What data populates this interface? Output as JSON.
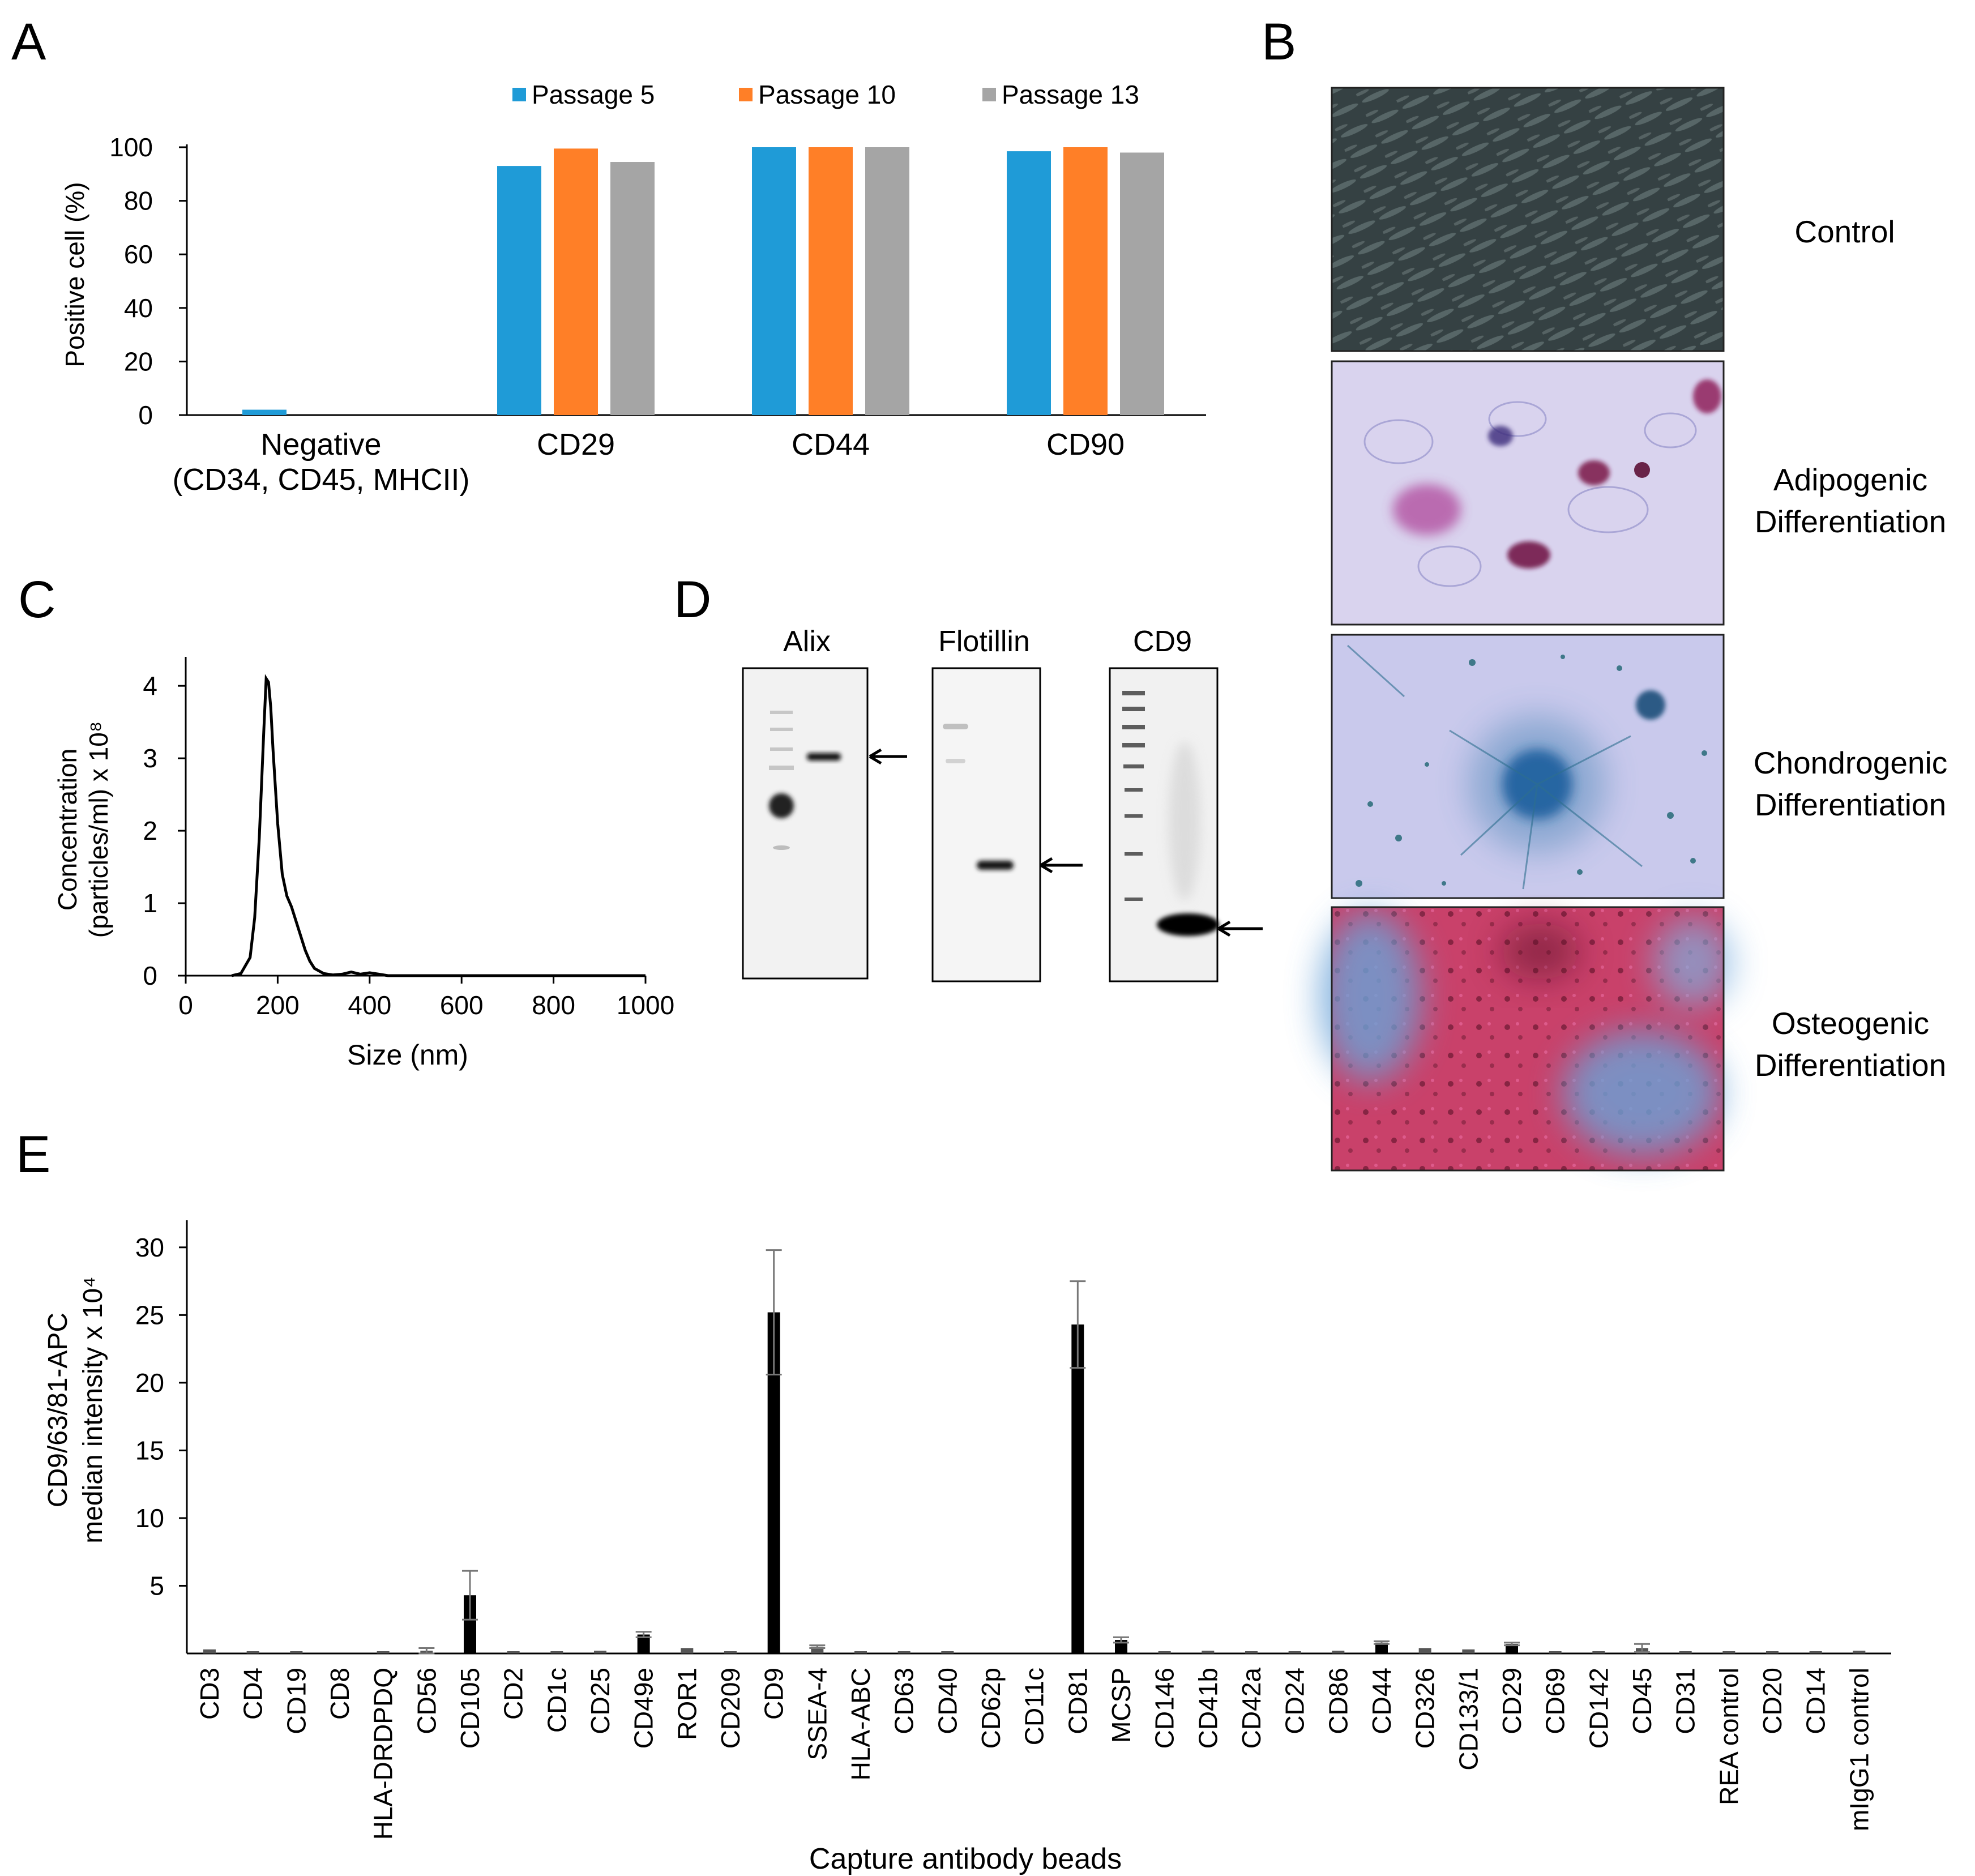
{
  "panel_letters": {
    "a": "A",
    "b": "B",
    "c": "C",
    "d": "D",
    "e": "E"
  },
  "colors": {
    "passage5": "#1f9bd7",
    "passage10": "#ff7f27",
    "passage13": "#a5a5a5",
    "bars_e": "#000000",
    "axis": "#000000"
  },
  "chart_data": [
    {
      "panel": "A",
      "type": "bar",
      "title": "",
      "xlabel": "",
      "ylabel": "Positive cell (%)",
      "ylim": [
        0,
        100
      ],
      "yticks": [
        "0",
        "20",
        "40",
        "60",
        "80",
        "100"
      ],
      "categories": [
        "Negative\n(CD34, CD45, MHCII)",
        "CD29",
        "CD44",
        "CD90"
      ],
      "category_lines": [
        [
          "Negative",
          "(CD34, CD45, MHCII)"
        ],
        [
          "CD29"
        ],
        [
          "CD44"
        ],
        [
          "CD90"
        ]
      ],
      "series": [
        {
          "name": "Passage 5",
          "color": "#1f9bd7",
          "values": [
            2,
            93,
            100,
            98.5
          ]
        },
        {
          "name": "Passage 10",
          "color": "#ff7f27",
          "values": [
            0,
            99.5,
            100,
            100
          ]
        },
        {
          "name": "Passage 13",
          "color": "#a5a5a5",
          "values": [
            0,
            94.5,
            100,
            98
          ]
        }
      ],
      "legend_position": "top"
    },
    {
      "panel": "C",
      "type": "line",
      "title": "",
      "xlabel": "Size (nm)",
      "ylabel_lines": [
        "Concentration",
        "(particles/ml) x 10⁸"
      ],
      "xlim": [
        0,
        1000
      ],
      "ylim": [
        0,
        4.4
      ],
      "xticks": [
        "0",
        "200",
        "400",
        "600",
        "800",
        "1000"
      ],
      "yticks": [
        "0",
        "1",
        "2",
        "3",
        "4"
      ],
      "x": [
        100,
        120,
        140,
        150,
        160,
        170,
        175,
        180,
        185,
        190,
        200,
        210,
        220,
        230,
        240,
        250,
        260,
        270,
        280,
        300,
        320,
        340,
        360,
        380,
        400,
        420,
        440,
        500,
        600,
        1000
      ],
      "y": [
        0,
        0.03,
        0.25,
        0.8,
        1.9,
        3.4,
        4.1,
        4.05,
        3.7,
        3.1,
        2.1,
        1.4,
        1.1,
        0.95,
        0.75,
        0.55,
        0.35,
        0.2,
        0.1,
        0.03,
        0.01,
        0.02,
        0.05,
        0.02,
        0.04,
        0.02,
        0,
        0,
        0,
        0
      ]
    },
    {
      "panel": "E",
      "type": "bar",
      "title": "",
      "xlabel": "Capture  antibody  beads",
      "ylabel_lines": [
        "CD9/63/81-APC",
        "median intensity x 10⁴"
      ],
      "ylim": [
        0,
        32
      ],
      "yticks": [
        "5",
        "10",
        "15",
        "20",
        "25",
        "30"
      ],
      "categories": [
        "CD3",
        "CD4",
        "CD19",
        "CD8",
        "HLA-DRDPDQ",
        "CD56",
        "CD105",
        "CD2",
        "CD1c",
        "CD25",
        "CD49e",
        "ROR1",
        "CD209",
        "CD9",
        "SSEA-4",
        "HLA-ABC",
        "CD63",
        "CD40",
        "CD62p",
        "CD11c",
        "CD81",
        "MCSP",
        "CD146",
        "CD41b",
        "CD42a",
        "CD24",
        "CD86",
        "CD44",
        "CD326",
        "CD133/1",
        "CD29",
        "CD69",
        "CD142",
        "CD45",
        "CD31",
        "REA control",
        "CD20",
        "CD14",
        "mIgG1 control"
      ],
      "values": [
        0.3,
        0.1,
        0.1,
        0,
        0.1,
        0.2,
        4.3,
        0.1,
        0.1,
        0.2,
        1.4,
        0.4,
        0.1,
        25.2,
        0.5,
        0.1,
        0.1,
        0.1,
        0,
        0,
        24.3,
        1.0,
        0.1,
        0.2,
        0.1,
        0.1,
        0.2,
        0.8,
        0.4,
        0.3,
        0.7,
        0.1,
        0.1,
        0.4,
        0.1,
        0.1,
        0.1,
        0.1,
        0.2
      ],
      "errors": [
        0,
        0,
        0,
        0,
        0,
        0.2,
        1.8,
        0,
        0,
        0,
        0.2,
        0,
        0,
        4.6,
        0.1,
        0,
        0,
        0,
        0,
        0,
        3.2,
        0.2,
        0,
        0,
        0,
        0,
        0,
        0.1,
        0,
        0,
        0.1,
        0,
        0,
        0.3,
        0,
        0,
        0,
        0,
        0
      ]
    }
  ],
  "panel_b": {
    "rows": [
      {
        "lines": [
          "Control"
        ]
      },
      {
        "lines": [
          "Adipogenic",
          "Differentiation"
        ]
      },
      {
        "lines": [
          "Chondrogenic",
          "Differentiation"
        ]
      },
      {
        "lines": [
          "Osteogenic",
          "Differentiation"
        ]
      }
    ]
  },
  "panel_d": {
    "blots": [
      "Alix",
      "Flotillin",
      "CD9"
    ]
  }
}
